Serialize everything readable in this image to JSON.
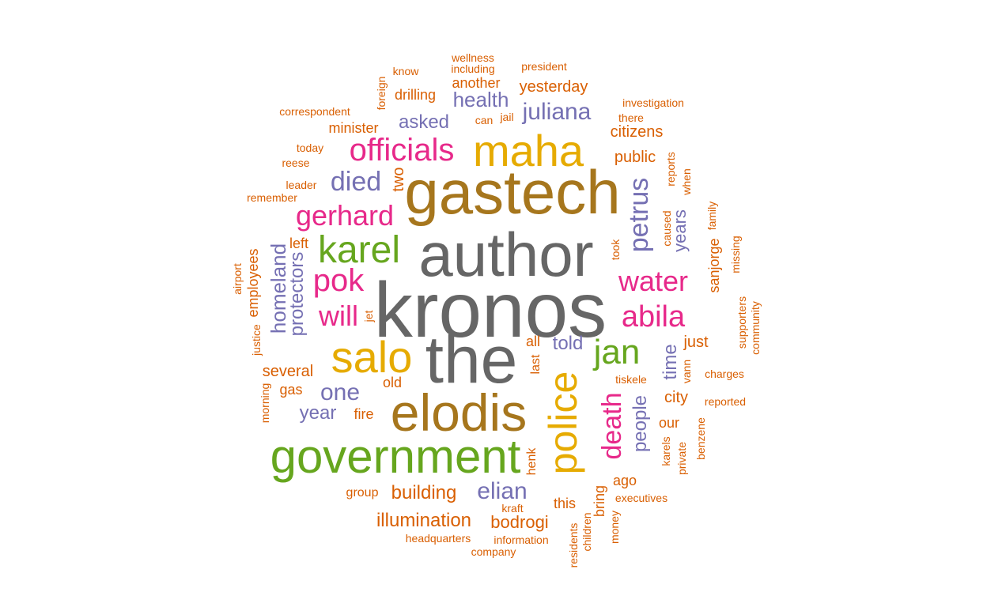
{
  "palette": {
    "gray": "#666666",
    "olive": "#A6761D",
    "gold": "#E6AB02",
    "green": "#66A61E",
    "pink": "#E7298A",
    "purple": "#7570B3",
    "orange": "#D95F02"
  },
  "words": [
    {
      "text": "kronos",
      "color": "gray"
    },
    {
      "text": "author",
      "color": "gray"
    },
    {
      "text": "the",
      "color": "gray"
    },
    {
      "text": "gastech",
      "color": "olive"
    },
    {
      "text": "elodis",
      "color": "olive"
    },
    {
      "text": "maha",
      "color": "gold"
    },
    {
      "text": "salo",
      "color": "gold"
    },
    {
      "text": "police",
      "color": "gold"
    },
    {
      "text": "government",
      "color": "green"
    },
    {
      "text": "officials",
      "color": "pink"
    },
    {
      "text": "karel",
      "color": "green"
    },
    {
      "text": "gerhard",
      "color": "pink"
    },
    {
      "text": "pok",
      "color": "pink"
    },
    {
      "text": "will",
      "color": "pink"
    },
    {
      "text": "died",
      "color": "purple"
    },
    {
      "text": "water",
      "color": "pink"
    },
    {
      "text": "abila",
      "color": "pink"
    },
    {
      "text": "jan",
      "color": "green"
    },
    {
      "text": "death",
      "color": "pink"
    },
    {
      "text": "petrus",
      "color": "purple"
    },
    {
      "text": "one",
      "color": "purple"
    },
    {
      "text": "elian",
      "color": "purple"
    },
    {
      "text": "health",
      "color": "purple"
    },
    {
      "text": "juliana",
      "color": "purple"
    },
    {
      "text": "asked",
      "color": "purple"
    },
    {
      "text": "homeland",
      "color": "purple"
    },
    {
      "text": "protectors",
      "color": "purple"
    },
    {
      "text": "people",
      "color": "purple"
    },
    {
      "text": "time",
      "color": "purple"
    },
    {
      "text": "years",
      "color": "purple"
    },
    {
      "text": "told",
      "color": "purple"
    },
    {
      "text": "year",
      "color": "purple"
    },
    {
      "text": "illumination",
      "color": "orange"
    },
    {
      "text": "building",
      "color": "orange"
    },
    {
      "text": "bodrogi",
      "color": "orange"
    },
    {
      "text": "several",
      "color": "orange"
    },
    {
      "text": "employees",
      "color": "orange"
    },
    {
      "text": "two",
      "color": "orange"
    },
    {
      "text": "yesterday",
      "color": "orange"
    },
    {
      "text": "public",
      "color": "orange"
    },
    {
      "text": "citizens",
      "color": "orange"
    },
    {
      "text": "sanjorge",
      "color": "orange"
    },
    {
      "text": "city",
      "color": "orange"
    },
    {
      "text": "just",
      "color": "orange"
    },
    {
      "text": "minister",
      "color": "orange"
    },
    {
      "text": "drilling",
      "color": "orange"
    },
    {
      "text": "another",
      "color": "orange"
    },
    {
      "text": "gas",
      "color": "orange"
    },
    {
      "text": "fire",
      "color": "orange"
    },
    {
      "text": "old",
      "color": "orange"
    },
    {
      "text": "all",
      "color": "orange"
    },
    {
      "text": "last",
      "color": "orange"
    },
    {
      "text": "jet",
      "color": "orange"
    },
    {
      "text": "left",
      "color": "orange"
    },
    {
      "text": "this",
      "color": "orange"
    },
    {
      "text": "ago",
      "color": "orange"
    },
    {
      "text": "our",
      "color": "orange"
    },
    {
      "text": "bring",
      "color": "orange"
    },
    {
      "text": "henk",
      "color": "orange"
    },
    {
      "text": "kraft",
      "color": "orange"
    },
    {
      "text": "group",
      "color": "orange"
    },
    {
      "text": "headquarters",
      "color": "orange"
    },
    {
      "text": "information",
      "color": "orange"
    },
    {
      "text": "company",
      "color": "orange"
    },
    {
      "text": "residents",
      "color": "orange"
    },
    {
      "text": "children",
      "color": "orange"
    },
    {
      "text": "money",
      "color": "orange"
    },
    {
      "text": "executives",
      "color": "orange"
    },
    {
      "text": "karels",
      "color": "orange"
    },
    {
      "text": "private",
      "color": "orange"
    },
    {
      "text": "benzene",
      "color": "orange"
    },
    {
      "text": "reported",
      "color": "orange"
    },
    {
      "text": "charges",
      "color": "orange"
    },
    {
      "text": "tiskele",
      "color": "orange"
    },
    {
      "text": "vann",
      "color": "orange"
    },
    {
      "text": "supporters",
      "color": "orange"
    },
    {
      "text": "community",
      "color": "orange"
    },
    {
      "text": "missing",
      "color": "orange"
    },
    {
      "text": "family",
      "color": "orange"
    },
    {
      "text": "took",
      "color": "orange"
    },
    {
      "text": "caused",
      "color": "orange"
    },
    {
      "text": "reports",
      "color": "orange"
    },
    {
      "text": "when",
      "color": "orange"
    },
    {
      "text": "investigation",
      "color": "orange"
    },
    {
      "text": "there",
      "color": "orange"
    },
    {
      "text": "president",
      "color": "orange"
    },
    {
      "text": "wellness",
      "color": "orange"
    },
    {
      "text": "including",
      "color": "orange"
    },
    {
      "text": "know",
      "color": "orange"
    },
    {
      "text": "foreign",
      "color": "orange"
    },
    {
      "text": "can",
      "color": "orange"
    },
    {
      "text": "jail",
      "color": "orange"
    },
    {
      "text": "correspondent",
      "color": "orange"
    },
    {
      "text": "today",
      "color": "orange"
    },
    {
      "text": "reese",
      "color": "orange"
    },
    {
      "text": "leader",
      "color": "orange"
    },
    {
      "text": "remember",
      "color": "orange"
    },
    {
      "text": "airport",
      "color": "orange"
    },
    {
      "text": "justice",
      "color": "orange"
    },
    {
      "text": "morning",
      "color": "orange"
    }
  ]
}
